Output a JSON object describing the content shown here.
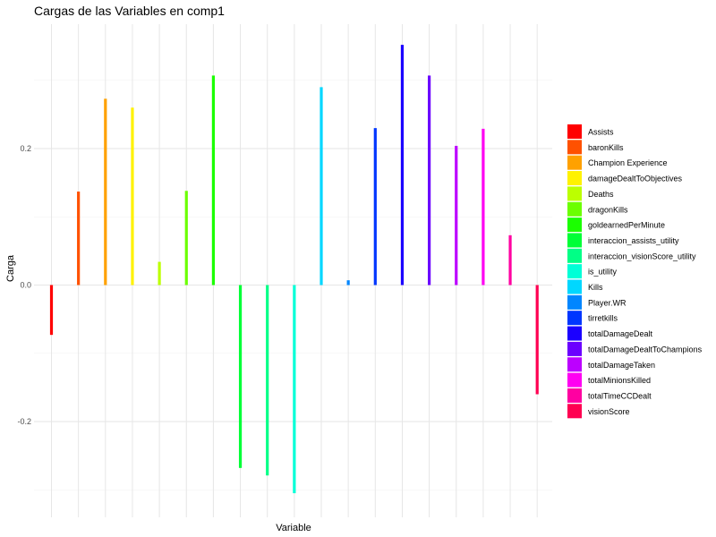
{
  "chart_data": {
    "type": "bar",
    "title": "Cargas de las Variables en comp1",
    "xlabel": "Variable",
    "ylabel": "Carga",
    "ylim": [
      -0.305,
      0.355
    ],
    "yticks": [
      -0.2,
      0.0,
      0.2
    ],
    "ytick_labels": [
      "-0.2",
      "0.0",
      "0.2"
    ],
    "grid": true,
    "legend_position": "right",
    "categories": [
      "Assists",
      "baronKills",
      "Champion Experience",
      "damageDealtToObjectives",
      "Deaths",
      "dragonKills",
      "goldearnedPerMinute",
      "interaccion_assists_utility",
      "interaccion_visionScore_utility",
      "is_utility",
      "Kills",
      "Player.WR",
      "tirretkills",
      "totalDamageDealt",
      "totalDamageDealtToChampions",
      "totalDamageTaken",
      "totalMinionsKilled",
      "totalTimeCCDealt",
      "visionScore"
    ],
    "values": [
      -0.073,
      0.137,
      0.273,
      0.26,
      0.034,
      0.138,
      0.307,
      -0.268,
      -0.279,
      -0.305,
      0.29,
      0.007,
      0.23,
      0.352,
      0.307,
      0.204,
      0.229,
      0.073,
      -0.16
    ],
    "colors": [
      "#FF0000",
      "#FF5100",
      "#FFA100",
      "#FFF200",
      "#BCFF00",
      "#6BFF00",
      "#1BFF00",
      "#00FF36",
      "#00FF86",
      "#00FFD7",
      "#00D7FF",
      "#0086FF",
      "#0036FF",
      "#1B00FF",
      "#6B00FF",
      "#BC00FF",
      "#FF00F2",
      "#FF00A1",
      "#FF0051"
    ]
  }
}
